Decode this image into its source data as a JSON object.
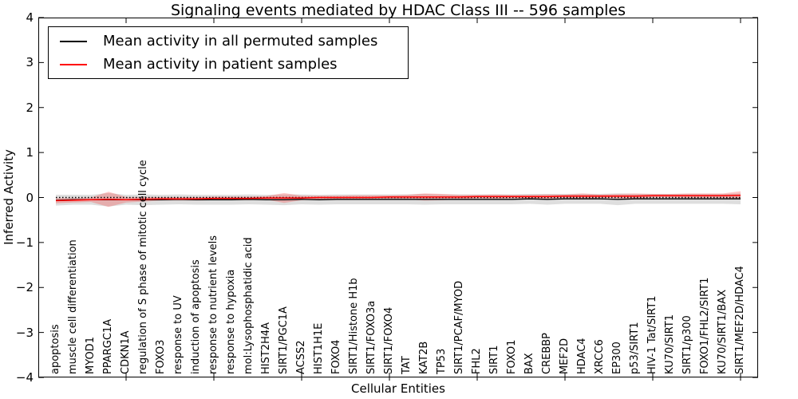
{
  "title": "Signaling events mediated by HDAC Class III -- 596 samples",
  "legend": {
    "items": [
      {
        "label": "Mean activity in all permuted samples",
        "color": "#000000"
      },
      {
        "label": "Mean activity in patient samples",
        "color": "#ff0000"
      }
    ]
  },
  "chart_data": {
    "type": "line",
    "title": "Signaling events mediated by HDAC Class III -- 596 samples",
    "xlabel": "Cellular Entities",
    "ylabel": "Inferred Activity",
    "ylim": [
      -4,
      4
    ],
    "yticks": [
      -4,
      -3,
      -2,
      -1,
      0,
      1,
      2,
      3,
      4
    ],
    "xtick_marks_every": 5,
    "grid": false,
    "legend_position": "upper left",
    "zero_reference_line": "black dotted line at y=0",
    "band_meaning": "shaded band = mean ± std",
    "permuted_band_color": "#000000",
    "permuted_band_opacity": 0.13,
    "patient_band_color": "#ff0000",
    "patient_band_opacity": 0.22,
    "categories": [
      "apoptosis",
      "muscle cell differentiation",
      "MYOD1",
      "PPARGC1A",
      "CDKN1A",
      "regulation of S phase of mitotic cell cycle",
      "FOXO3",
      "response to UV",
      "induction of apoptosis",
      "response to nutrient levels",
      "response to hypoxia",
      "mol:Lysophosphatidic acid",
      "HIST2H4A",
      "SIRT1/PGC1A",
      "ACSS2",
      "HIST1H1E",
      "FOXO4",
      "SIRT1/Histone H1b",
      "SIRT1/FOXO3a",
      "SIRT1/FOXO4",
      "TAT",
      "KAT2B",
      "TP53",
      "SIRT1/PCAF/MYOD",
      "FHL2",
      "SIRT1",
      "FOXO1",
      "BAX",
      "CREBBP",
      "MEF2D",
      "HDAC4",
      "XRCC6",
      "EP300",
      "p53/SIRT1",
      "HIV-1 Tat/SIRT1",
      "KU70/SIRT1",
      "SIRT1/p300",
      "FOXO1/FHL2/SIRT1",
      "KU70/SIRT1/BAX",
      "SIRT1/MEF2D/HDAC4"
    ],
    "series": [
      {
        "name": "Mean activity in all permuted samples",
        "color": "#000000",
        "style": "solid",
        "mean": [
          -0.06,
          -0.05,
          -0.05,
          -0.05,
          -0.05,
          -0.05,
          -0.05,
          -0.04,
          -0.05,
          -0.05,
          -0.05,
          -0.04,
          -0.05,
          -0.05,
          -0.04,
          -0.05,
          -0.04,
          -0.04,
          -0.04,
          -0.04,
          -0.04,
          -0.04,
          -0.04,
          -0.04,
          -0.04,
          -0.04,
          -0.04,
          -0.03,
          -0.04,
          -0.03,
          -0.03,
          -0.03,
          -0.04,
          -0.03,
          -0.03,
          -0.03,
          -0.03,
          -0.03,
          -0.03,
          -0.03
        ],
        "std": [
          0.12,
          0.11,
          0.11,
          0.15,
          0.11,
          0.12,
          0.11,
          0.11,
          0.11,
          0.11,
          0.11,
          0.11,
          0.11,
          0.12,
          0.11,
          0.11,
          0.11,
          0.11,
          0.11,
          0.11,
          0.11,
          0.12,
          0.11,
          0.11,
          0.11,
          0.11,
          0.11,
          0.11,
          0.12,
          0.11,
          0.11,
          0.11,
          0.13,
          0.11,
          0.11,
          0.11,
          0.11,
          0.11,
          0.11,
          0.12
        ]
      },
      {
        "name": "Mean activity in patient samples",
        "color": "#ff0000",
        "style": "solid",
        "mean": [
          -0.07,
          -0.06,
          -0.05,
          -0.04,
          -0.05,
          -0.04,
          -0.03,
          -0.03,
          -0.03,
          -0.02,
          -0.02,
          -0.02,
          -0.01,
          -0.01,
          -0.01,
          0.0,
          0.0,
          0.0,
          0.0,
          0.01,
          0.01,
          0.01,
          0.01,
          0.01,
          0.02,
          0.02,
          0.02,
          0.02,
          0.02,
          0.03,
          0.03,
          0.03,
          0.03,
          0.03,
          0.04,
          0.04,
          0.04,
          0.04,
          0.04,
          0.05
        ],
        "std": [
          0.06,
          0.05,
          0.05,
          0.17,
          0.06,
          0.05,
          0.04,
          0.04,
          0.04,
          0.04,
          0.04,
          0.04,
          0.04,
          0.11,
          0.05,
          0.04,
          0.04,
          0.05,
          0.05,
          0.04,
          0.05,
          0.08,
          0.07,
          0.05,
          0.04,
          0.05,
          0.04,
          0.04,
          0.05,
          0.04,
          0.06,
          0.04,
          0.05,
          0.06,
          0.04,
          0.04,
          0.05,
          0.05,
          0.05,
          0.09
        ]
      }
    ]
  }
}
